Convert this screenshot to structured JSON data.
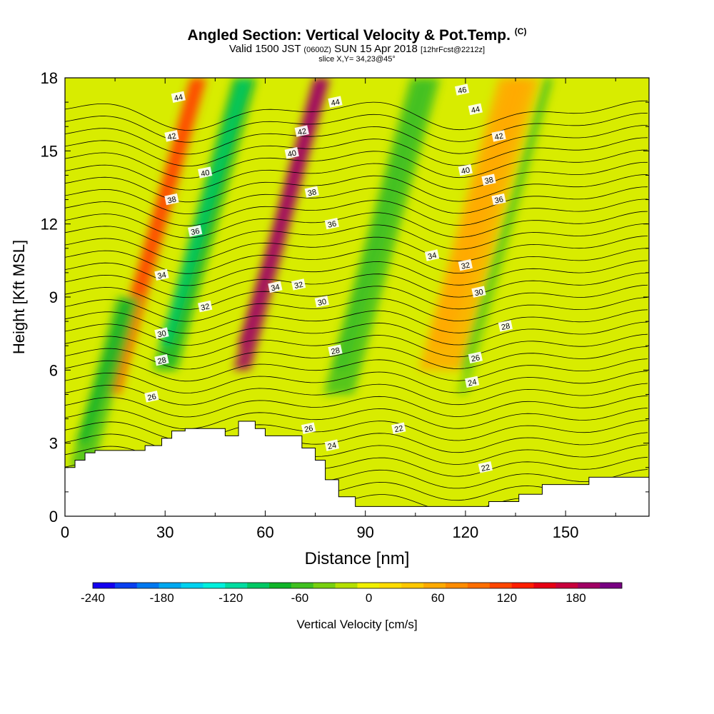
{
  "header": {
    "title": "Angled Section: Vertical Velocity & Pot.Temp.",
    "title_mark": "(C)",
    "valid_a": "Valid 1500 JST",
    "valid_b": "(0600Z)",
    "valid_c": "SUN 15 Apr 2018",
    "valid_d": "[12hrFcst@2212z]",
    "slice": "slice X,Y= 34,23@45°"
  },
  "chart_data": {
    "type": "heatmap",
    "title": "Angled Section: Vertical Velocity & Pot.Temp.",
    "xlabel": "Distance [nm]",
    "ylabel": "Height [Kft MSL]",
    "xlim": [
      0,
      175
    ],
    "ylim": [
      0,
      18
    ],
    "x_ticks": [
      "0",
      "30",
      "60",
      "90",
      "120",
      "150"
    ],
    "x_tick_values": [
      0,
      30,
      60,
      90,
      120,
      150
    ],
    "y_ticks": [
      "0",
      "3",
      "6",
      "9",
      "12",
      "15",
      "18"
    ],
    "y_tick_values": [
      0,
      3,
      6,
      9,
      12,
      15,
      18
    ],
    "color_field": "Vertical Velocity [cm/s]",
    "contour_field": "Potential Temperature (°C)",
    "colorbar": {
      "label": "Vertical Velocity [cm/s]",
      "min": -240,
      "max": 220,
      "step": 20,
      "tick_labels": [
        "-240",
        "-180",
        "-120",
        "-60",
        "0",
        "60",
        "120",
        "180"
      ],
      "tick_values": [
        -240,
        -180,
        -120,
        -60,
        0,
        60,
        120,
        180
      ],
      "colors": [
        "#1400f0",
        "#0a40f0",
        "#0078f0",
        "#00a8f0",
        "#00d2f0",
        "#00f0dc",
        "#00dca0",
        "#00c864",
        "#10b428",
        "#40c020",
        "#78d010",
        "#b4e000",
        "#f0f000",
        "#ffdc00",
        "#ffc800",
        "#ffaa00",
        "#ff8c00",
        "#ff6e00",
        "#ff4600",
        "#ff1e00",
        "#e60014",
        "#c8003c",
        "#a00064",
        "#780082"
      ]
    },
    "velocity_bands": [
      {
        "x": 27,
        "w": 5,
        "z0": 5,
        "z1": 18,
        "w_cms": 130
      },
      {
        "x": 65,
        "w": 5,
        "z0": 6,
        "z1": 18,
        "w_cms": 200
      },
      {
        "x": 42,
        "w": 7,
        "z0": 6,
        "z1": 18,
        "w_cms": -70
      },
      {
        "x": 95,
        "w": 9,
        "z0": 5,
        "z1": 18,
        "w_cms": -50
      },
      {
        "x": 124,
        "w": 12,
        "z0": 6,
        "z1": 18,
        "w_cms": 60
      },
      {
        "x": 132,
        "w": 3,
        "z0": 5,
        "z1": 18,
        "w_cms": -40
      },
      {
        "x": 12,
        "w": 7,
        "z0": 2,
        "z1": 9,
        "w_cms": -60
      }
    ],
    "terrain": {
      "x": [
        0,
        3,
        3,
        6,
        6,
        9,
        9,
        24,
        24,
        29,
        29,
        32,
        32,
        36,
        36,
        48,
        48,
        52,
        52,
        57,
        57,
        60,
        60,
        71,
        71,
        75,
        75,
        78,
        78,
        82,
        82,
        87,
        87,
        127,
        127,
        136,
        136,
        143,
        143,
        157,
        157,
        175
      ],
      "z": [
        2,
        2,
        2.3,
        2.3,
        2.6,
        2.6,
        2.7,
        2.7,
        2.9,
        2.9,
        3.2,
        3.2,
        3.5,
        3.5,
        3.6,
        3.6,
        3.3,
        3.3,
        3.9,
        3.9,
        3.6,
        3.6,
        3.3,
        3.3,
        2.8,
        2.8,
        2.3,
        2.3,
        1.5,
        1.5,
        0.8,
        0.8,
        0.4,
        0.4,
        0.6,
        0.6,
        0.9,
        0.9,
        1.3,
        1.3,
        1.6,
        1.6
      ]
    },
    "isentrope_labels": [
      {
        "x": 34,
        "z": 17.2,
        "label": "44"
      },
      {
        "x": 32,
        "z": 15.6,
        "label": "42"
      },
      {
        "x": 42,
        "z": 14.1,
        "label": "40"
      },
      {
        "x": 32,
        "z": 13.0,
        "label": "38"
      },
      {
        "x": 39,
        "z": 11.7,
        "label": "36"
      },
      {
        "x": 29,
        "z": 9.9,
        "label": "34"
      },
      {
        "x": 42,
        "z": 8.6,
        "label": "32"
      },
      {
        "x": 29,
        "z": 7.5,
        "label": "30"
      },
      {
        "x": 29,
        "z": 6.4,
        "label": "28"
      },
      {
        "x": 26,
        "z": 4.9,
        "label": "26"
      },
      {
        "x": 81,
        "z": 17.0,
        "label": "44"
      },
      {
        "x": 71,
        "z": 15.8,
        "label": "42"
      },
      {
        "x": 68,
        "z": 14.9,
        "label": "40"
      },
      {
        "x": 74,
        "z": 13.3,
        "label": "38"
      },
      {
        "x": 80,
        "z": 12.0,
        "label": "36"
      },
      {
        "x": 63,
        "z": 9.4,
        "label": "34"
      },
      {
        "x": 70,
        "z": 9.5,
        "label": "32"
      },
      {
        "x": 77,
        "z": 8.8,
        "label": "30"
      },
      {
        "x": 81,
        "z": 6.8,
        "label": "28"
      },
      {
        "x": 73,
        "z": 3.6,
        "label": "26"
      },
      {
        "x": 80,
        "z": 2.9,
        "label": "24"
      },
      {
        "x": 100,
        "z": 3.6,
        "label": "22"
      },
      {
        "x": 119,
        "z": 17.5,
        "label": "46"
      },
      {
        "x": 123,
        "z": 16.7,
        "label": "44"
      },
      {
        "x": 130,
        "z": 15.6,
        "label": "42"
      },
      {
        "x": 120,
        "z": 14.2,
        "label": "40"
      },
      {
        "x": 127,
        "z": 13.8,
        "label": "38"
      },
      {
        "x": 130,
        "z": 13.0,
        "label": "36"
      },
      {
        "x": 110,
        "z": 10.7,
        "label": "34"
      },
      {
        "x": 120,
        "z": 10.3,
        "label": "32"
      },
      {
        "x": 124,
        "z": 9.2,
        "label": "30"
      },
      {
        "x": 132,
        "z": 7.8,
        "label": "28"
      },
      {
        "x": 123,
        "z": 6.5,
        "label": "26"
      },
      {
        "x": 122,
        "z": 5.5,
        "label": "24"
      },
      {
        "x": 126,
        "z": 2.0,
        "label": "22"
      }
    ]
  }
}
